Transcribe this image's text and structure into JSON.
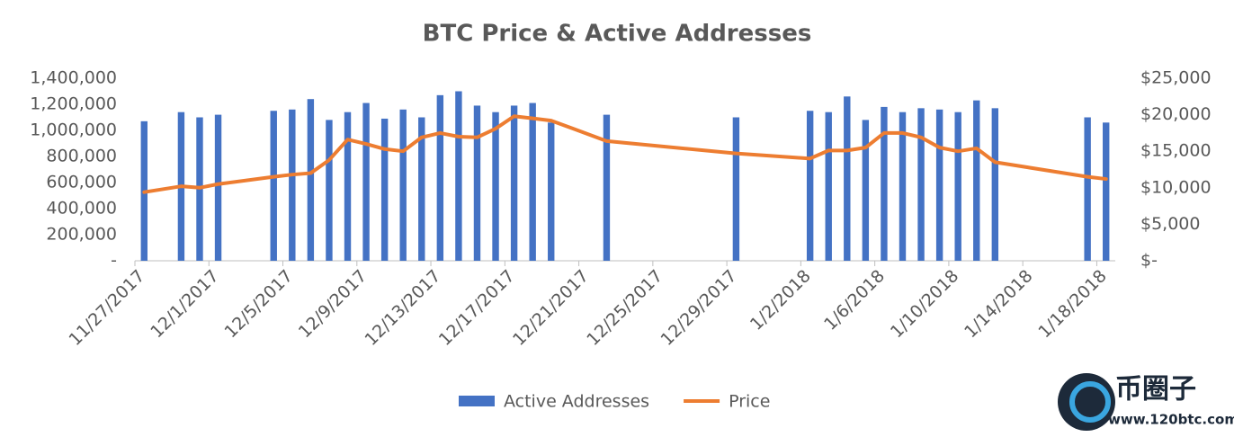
{
  "chart_data": {
    "type": "bar-line",
    "title": "BTC Price & Active Addresses",
    "x": [
      "11/27/2017",
      "11/29/2017",
      "11/30/2017",
      "12/1/2017",
      "12/4/2017",
      "12/5/2017",
      "12/6/2017",
      "12/7/2017",
      "12/8/2017",
      "12/9/2017",
      "12/10/2017",
      "12/11/2017",
      "12/12/2017",
      "12/13/2017",
      "12/14/2017",
      "12/15/2017",
      "12/16/2017",
      "12/17/2017",
      "12/18/2017",
      "12/19/2017",
      "12/22/2017",
      "12/29/2017",
      "1/2/2018",
      "1/3/2018",
      "1/4/2018",
      "1/5/2018",
      "1/6/2018",
      "1/7/2018",
      "1/8/2018",
      "1/9/2018",
      "1/10/2018",
      "1/11/2018",
      "1/12/2018",
      "1/17/2018",
      "1/18/2018"
    ],
    "series": [
      {
        "name": "Active Addresses",
        "type": "bar",
        "color": "#4472c4",
        "values": [
          1070000,
          1140000,
          1100000,
          1120000,
          1150000,
          1160000,
          1240000,
          1080000,
          1140000,
          1210000,
          1090000,
          1160000,
          1100000,
          1270000,
          1300000,
          1190000,
          1140000,
          1190000,
          1210000,
          1060000,
          1120000,
          1100000,
          1150000,
          1140000,
          1260000,
          1080000,
          1180000,
          1140000,
          1170000,
          1160000,
          1140000,
          1230000,
          1170000,
          1100000,
          1060000
        ]
      },
      {
        "name": "Price",
        "type": "line",
        "axis": "y2",
        "color": "#ed7d31",
        "values": [
          9400,
          10200,
          10000,
          10500,
          11500,
          11800,
          12000,
          13800,
          16600,
          16000,
          15300,
          15000,
          16900,
          17500,
          17000,
          16900,
          18100,
          19800,
          19500,
          19200,
          16400,
          14700,
          14000,
          15100,
          15100,
          15500,
          17500,
          17500,
          16900,
          15500,
          15000,
          15400,
          13500,
          11500,
          11200
        ]
      }
    ],
    "xlim": [
      "11/27/2017",
      "1/19/2018"
    ],
    "xticks": [
      "11/27/2017",
      "12/1/2017",
      "12/5/2017",
      "12/9/2017",
      "12/13/2017",
      "12/17/2017",
      "12/21/2017",
      "12/25/2017",
      "12/29/2017",
      "1/2/2018",
      "1/6/2018",
      "1/10/2018",
      "1/14/2018",
      "1/18/2018"
    ],
    "ylim": [
      0,
      1400000
    ],
    "yticks": [
      {
        "value": 0,
        "label": "-"
      },
      {
        "value": 200000,
        "label": "200,000"
      },
      {
        "value": 400000,
        "label": "400,000"
      },
      {
        "value": 600000,
        "label": "600,000"
      },
      {
        "value": 800000,
        "label": "800,000"
      },
      {
        "value": 1000000,
        "label": "1,000,000"
      },
      {
        "value": 1200000,
        "label": "1,200,000"
      },
      {
        "value": 1400000,
        "label": "1,400,000"
      }
    ],
    "y2lim": [
      0,
      25000
    ],
    "y2ticks": [
      {
        "value": 0,
        "label": "$-"
      },
      {
        "value": 5000,
        "label": "$5,000"
      },
      {
        "value": 10000,
        "label": "$10,000"
      },
      {
        "value": 15000,
        "label": "$15,000"
      },
      {
        "value": 20000,
        "label": "$20,000"
      },
      {
        "value": 25000,
        "label": "$25,000"
      }
    ],
    "legend": "bottom"
  },
  "watermark": {
    "brand": "币圈子",
    "url": "www.120btc.com"
  }
}
